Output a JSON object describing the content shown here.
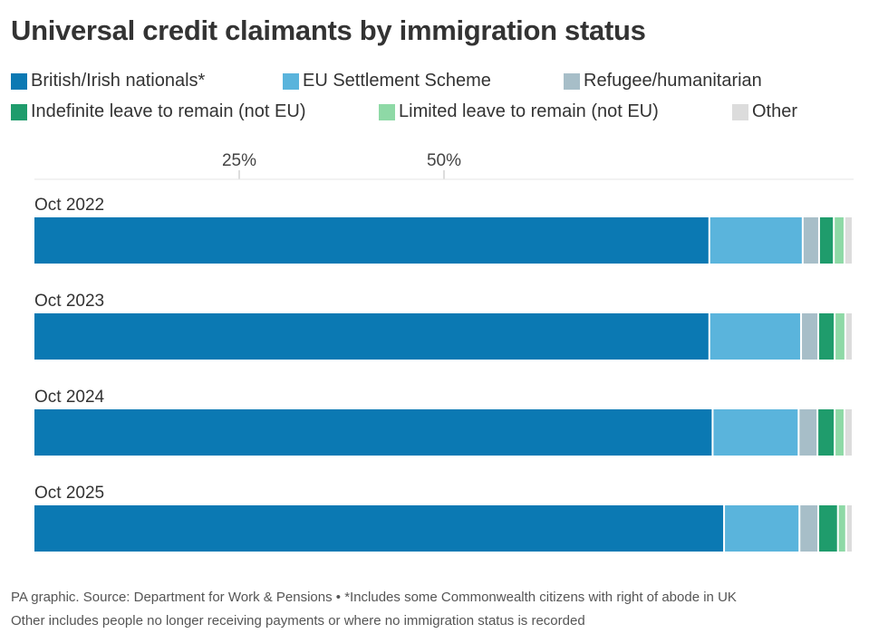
{
  "chart_data": {
    "type": "bar",
    "orientation": "horizontal",
    "stacked": true,
    "title": "Universal credit claimants by immigration status",
    "categories": [
      "Oct 2022",
      "Oct 2023",
      "Oct 2024",
      "Oct 2025"
    ],
    "series": [
      {
        "name": "British/Irish nationals*",
        "color": "#0b79b3",
        "values": [
          82.5,
          82.5,
          82.9,
          84.3
        ]
      },
      {
        "name": "EU Settlement Scheme",
        "color": "#5ab4dc",
        "values": [
          11.4,
          11.2,
          10.5,
          9.2
        ]
      },
      {
        "name": "Refugee/humanitarian",
        "color": "#a7bec8",
        "values": [
          2.0,
          2.1,
          2.3,
          2.3
        ]
      },
      {
        "name": "Indefinite leave to remain (not EU)",
        "color": "#1f9c6c",
        "values": [
          1.8,
          2.0,
          2.1,
          2.4
        ]
      },
      {
        "name": "Limited leave to remain (not EU)",
        "color": "#8ed9a6",
        "values": [
          1.3,
          1.3,
          1.2,
          1.0
        ]
      },
      {
        "name": "Other",
        "color": "#dcdcdc",
        "values": [
          1.0,
          0.9,
          1.0,
          0.8
        ]
      }
    ],
    "xlim": [
      0,
      100
    ],
    "x_ticks": [
      "25%",
      "50%"
    ],
    "legend": "top",
    "grid": false
  },
  "footer": {
    "source": "PA graphic. Source: Department for Work & Pensions • *Includes some Commonwealth citizens with right of abode in UK",
    "note": "Other includes people no longer receiving payments or where no immigration status is recorded"
  }
}
